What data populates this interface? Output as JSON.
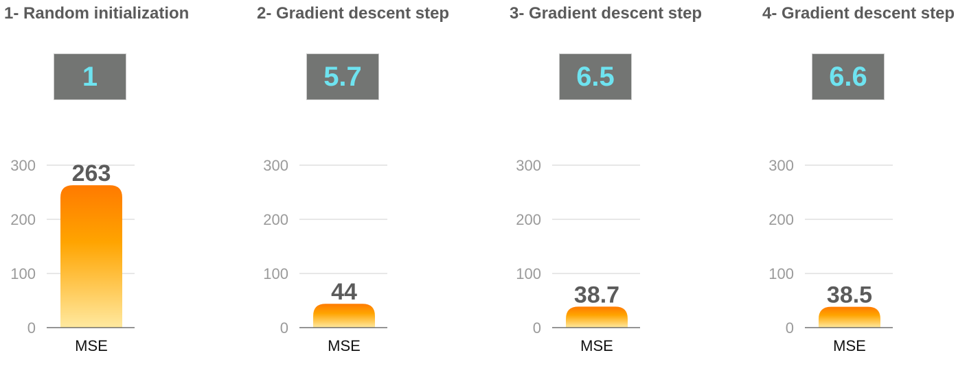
{
  "colors": {
    "title": "#5b5b5b",
    "param_box_bg": "#737573",
    "param_value": "#6ee3f0",
    "bar_top": "#ff7a00",
    "bar_mid": "#ffa400",
    "bar_bottom": "#ffe9a0",
    "gridline": "#cfcfcf",
    "baseline": "#555555"
  },
  "panels": [
    {
      "title": "1- Random initialization",
      "param_value": "1"
    },
    {
      "title": "2- Gradient descent step",
      "param_value": "5.7"
    },
    {
      "title": "3- Gradient descent step",
      "param_value": "6.5"
    },
    {
      "title": "4- Gradient descent step",
      "param_value": "6.6"
    }
  ],
  "chart_data": [
    {
      "type": "bar",
      "categories": [
        "MSE"
      ],
      "values": [
        263
      ],
      "value_labels": [
        "263"
      ],
      "ylim": [
        0,
        300
      ],
      "yticks": [
        0,
        100,
        200,
        300
      ],
      "grid": true
    },
    {
      "type": "bar",
      "categories": [
        "MSE"
      ],
      "values": [
        44
      ],
      "value_labels": [
        "44"
      ],
      "ylim": [
        0,
        300
      ],
      "yticks": [
        0,
        100,
        200,
        300
      ],
      "grid": true
    },
    {
      "type": "bar",
      "categories": [
        "MSE"
      ],
      "values": [
        38.7
      ],
      "value_labels": [
        "38.7"
      ],
      "ylim": [
        0,
        300
      ],
      "yticks": [
        0,
        100,
        200,
        300
      ],
      "grid": true
    },
    {
      "type": "bar",
      "categories": [
        "MSE"
      ],
      "values": [
        38.5
      ],
      "value_labels": [
        "38.5"
      ],
      "ylim": [
        0,
        300
      ],
      "yticks": [
        0,
        100,
        200,
        300
      ],
      "grid": true
    }
  ]
}
